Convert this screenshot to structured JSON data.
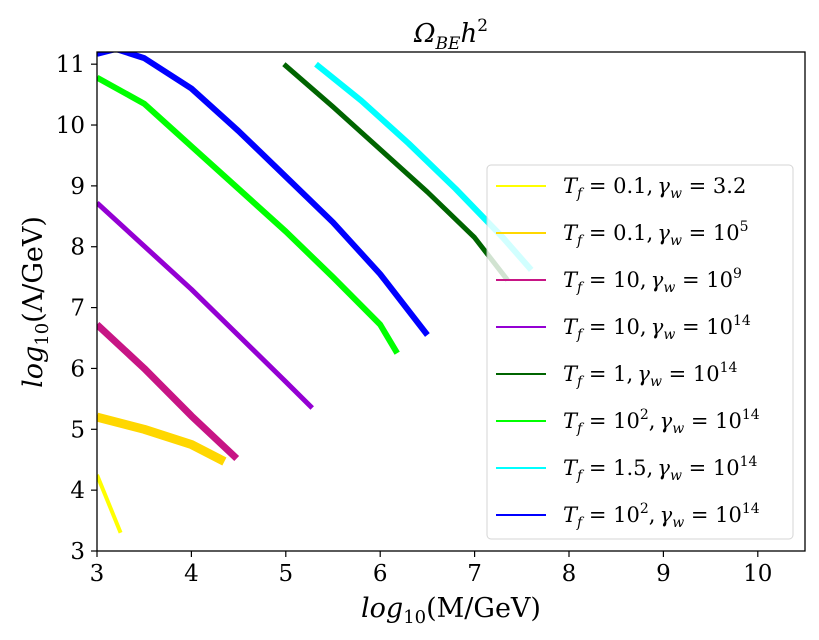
{
  "chart_data": {
    "type": "line",
    "title": "Ω_{BE}h^2",
    "title_parts": {
      "base": "Ω",
      "sub": "BE",
      "rest": "h",
      "sup": "2"
    },
    "xlabel": "log_{10}(M/GeV)",
    "xlabel_parts": {
      "pre": "log",
      "sub": "10",
      "post": "(M/GeV)"
    },
    "ylabel": "log_{10}(Λ/GeV)",
    "ylabel_parts": {
      "pre": "log",
      "sub": "10",
      "post": "(Λ/GeV)"
    },
    "xlim": [
      3,
      10.5
    ],
    "ylim": [
      3,
      11.2
    ],
    "xticks": [
      "3",
      "4",
      "5",
      "6",
      "7",
      "8",
      "9",
      "10"
    ],
    "yticks": [
      "3",
      "4",
      "5",
      "6",
      "7",
      "8",
      "9",
      "10",
      "11"
    ],
    "grid": false,
    "legend_position": "center-right",
    "series": [
      {
        "name": "T_f = 0.1, γ_w = 3.2",
        "T": "0.1",
        "T_sup": "",
        "g": "3.2",
        "g_sup": "",
        "color": "#ffff00",
        "x": [
          3.0,
          3.25
        ],
        "y": [
          4.25,
          3.3
        ]
      },
      {
        "name": "T_f = 0.1, γ_w = 10^5",
        "T": "0.1",
        "T_sup": "",
        "g": "10",
        "g_sup": "5",
        "color": "#ffd700",
        "x": [
          3.0,
          3.5,
          4.0,
          4.35
        ],
        "y": [
          5.2,
          5.0,
          4.75,
          4.47
        ]
      },
      {
        "name": "T_f = 10, γ_w = 10^9",
        "T": "10",
        "T_sup": "",
        "g": "10",
        "g_sup": "9",
        "color": "#c71585",
        "x": [
          3.0,
          3.5,
          4.0,
          4.48
        ],
        "y": [
          6.72,
          6.0,
          5.22,
          4.52
        ]
      },
      {
        "name": "T_f = 10, γ_w = 10^14",
        "T": "10",
        "T_sup": "",
        "g": "10",
        "g_sup": "14",
        "color": "#9400d3",
        "x": [
          3.0,
          4.0,
          5.0,
          5.28
        ],
        "y": [
          8.72,
          7.3,
          5.78,
          5.35
        ]
      },
      {
        "name": "T_f = 1, γ_w = 10^14",
        "T": "1",
        "T_sup": "",
        "g": "10",
        "g_sup": "14",
        "color": "#006400",
        "x": [
          4.98,
          5.5,
          6.0,
          6.5,
          7.0,
          7.35
        ],
        "y": [
          11.0,
          10.3,
          9.6,
          8.9,
          8.15,
          7.45
        ]
      },
      {
        "name": "T_f = 10^2, γ_w = 10^14",
        "T": "10",
        "T_sup": "2",
        "g": "10",
        "g_sup": "14",
        "color": "#00ff00",
        "x": [
          3.0,
          3.5,
          4.0,
          4.5,
          5.0,
          5.5,
          6.0,
          6.18
        ],
        "y": [
          10.78,
          10.35,
          9.65,
          8.95,
          8.25,
          7.5,
          6.72,
          6.25
        ]
      },
      {
        "name": "T_f = 1.5, γ_w = 10^14",
        "T": "1.5",
        "T_sup": "",
        "g": "10",
        "g_sup": "14",
        "color": "#00ffff",
        "x": [
          5.32,
          5.8,
          6.3,
          6.8,
          7.3,
          7.6
        ],
        "y": [
          11.0,
          10.4,
          9.7,
          8.95,
          8.15,
          7.62
        ]
      },
      {
        "name": "T_f = 10^2, γ_w = 10^14",
        "T": "10",
        "T_sup": "2",
        "g": "10",
        "g_sup": "14",
        "color": "#0000ff",
        "x": [
          3.0,
          3.2,
          3.5,
          4.0,
          4.5,
          5.0,
          5.5,
          6.0,
          6.5
        ],
        "y": [
          11.17,
          11.25,
          11.1,
          10.6,
          9.9,
          9.15,
          8.4,
          7.55,
          6.55
        ]
      }
    ]
  }
}
